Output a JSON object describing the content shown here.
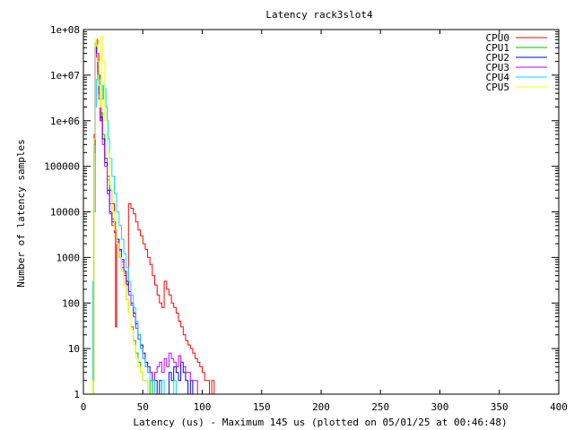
{
  "chart_data": {
    "type": "line",
    "title": "Latency rack3slot4",
    "xlabel": "Latency (us) - Maximum 145 us (plotted on 05/01/25 at 00:46:48)",
    "ylabel": "Number of latency samples",
    "xlim": [
      0,
      400
    ],
    "ylim": [
      1,
      100000000
    ],
    "yscale": "log",
    "xticks": [
      0,
      50,
      100,
      150,
      200,
      250,
      300,
      350,
      400
    ],
    "yticks": [
      {
        "v": 1,
        "label": "1"
      },
      {
        "v": 10,
        "label": "10"
      },
      {
        "v": 100,
        "label": "100"
      },
      {
        "v": 1000,
        "label": "1000"
      },
      {
        "v": 10000,
        "label": "10000"
      },
      {
        "v": 100000,
        "label": "100000"
      },
      {
        "v": 1000000,
        "label": "1e+06"
      },
      {
        "v": 10000000,
        "label": "1e+07"
      },
      {
        "v": 100000000,
        "label": "1e+08"
      }
    ],
    "legend_position": "top-right",
    "series": [
      {
        "name": "CPU0",
        "color": "#ff0000",
        "x": [
          8,
          9,
          10,
          11,
          12,
          13,
          14,
          15,
          16,
          18,
          20,
          22,
          24,
          26,
          27,
          28,
          30,
          32,
          34,
          36,
          38,
          40,
          42,
          44,
          46,
          48,
          50,
          52,
          54,
          56,
          58,
          60,
          62,
          64,
          66,
          68,
          70,
          72,
          74,
          76,
          78,
          80,
          82,
          84,
          86,
          88,
          90,
          92,
          94,
          96,
          98,
          100,
          102,
          104,
          106,
          108,
          110,
          112,
          114,
          116,
          118,
          120,
          122,
          124,
          126,
          128,
          130,
          132,
          134,
          136,
          138,
          140,
          145
        ],
        "y": [
          2,
          500000,
          50000000,
          60000000,
          30000000,
          10000000,
          3000000,
          1000000,
          400000,
          150000,
          60000,
          30000,
          15000,
          6000,
          30,
          2000,
          1000,
          600,
          400,
          250,
          15000,
          12000,
          9000,
          6000,
          4000,
          3000,
          2000,
          1500,
          1000,
          700,
          400,
          250,
          150,
          100,
          80,
          300,
          200,
          150,
          100,
          80,
          60,
          40,
          30,
          20,
          15,
          12,
          10,
          8,
          6,
          5,
          4,
          3,
          2,
          2,
          1,
          2,
          1,
          1,
          1,
          1,
          1,
          1,
          1,
          1,
          1,
          1,
          0,
          0,
          1,
          0,
          1,
          0,
          1
        ]
      },
      {
        "name": "CPU1",
        "color": "#00c000",
        "x": [
          8,
          9,
          10,
          11,
          12,
          13,
          14,
          16,
          18,
          20,
          22,
          24,
          26,
          28,
          30,
          32,
          34,
          36,
          38,
          40,
          42,
          44,
          46,
          48,
          50,
          52,
          54,
          56,
          58,
          60,
          62,
          64,
          66,
          68,
          70,
          72
        ],
        "y": [
          2,
          300000,
          50000000,
          40000000,
          15000000,
          5000000,
          1500000,
          500000,
          150000,
          50000,
          15000,
          7000,
          4000,
          2000,
          1000,
          500,
          250,
          120,
          60,
          30,
          15,
          8,
          5,
          3,
          2,
          2,
          1,
          2,
          1,
          1,
          1,
          1,
          1,
          0,
          1,
          1
        ]
      },
      {
        "name": "CPU2",
        "color": "#0000ff",
        "x": [
          8,
          9,
          10,
          11,
          12,
          13,
          14,
          16,
          18,
          20,
          22,
          24,
          26,
          28,
          30,
          32,
          34,
          36,
          38,
          40,
          42,
          44,
          46,
          48,
          50,
          52,
          54,
          56,
          58,
          60,
          62,
          64,
          66,
          68,
          70,
          72,
          74,
          76,
          78,
          80,
          82,
          84,
          86,
          88,
          90,
          92,
          94,
          96,
          98,
          100,
          102,
          104,
          106,
          108,
          110
        ],
        "y": [
          2,
          300000,
          40000000,
          30000000,
          12000000,
          4000000,
          1200000,
          400000,
          120000,
          30000,
          10000,
          6000,
          4000,
          2500,
          1500,
          900,
          500,
          300,
          180,
          100,
          60,
          35,
          20,
          12,
          8,
          5,
          4,
          3,
          2,
          2,
          1,
          2,
          1,
          1,
          1,
          3,
          2,
          4,
          3,
          2,
          5,
          3,
          2,
          1,
          2,
          1,
          1,
          1,
          1,
          1,
          1,
          1,
          1,
          1,
          1
        ]
      },
      {
        "name": "CPU3",
        "color": "#c000ff",
        "x": [
          8,
          9,
          10,
          11,
          12,
          13,
          14,
          16,
          18,
          20,
          22,
          24,
          26,
          28,
          30,
          32,
          34,
          36,
          38,
          40,
          42,
          44,
          46,
          48,
          50,
          52,
          54,
          56,
          58,
          60,
          62,
          64,
          66,
          68,
          70,
          72,
          74,
          76,
          78,
          80,
          82,
          84,
          86,
          88,
          90,
          92,
          94,
          96,
          98,
          100
        ],
        "y": [
          2,
          200000,
          30000000,
          25000000,
          10000000,
          3000000,
          1000000,
          300000,
          100000,
          25000,
          9000,
          5000,
          3500,
          2200,
          1400,
          800,
          450,
          260,
          150,
          90,
          50,
          28,
          16,
          10,
          6,
          4,
          3,
          3,
          2,
          3,
          4,
          5,
          3,
          6,
          4,
          8,
          6,
          5,
          4,
          7,
          5,
          4,
          3,
          3,
          2,
          2,
          2,
          1,
          1,
          1
        ]
      },
      {
        "name": "CPU4",
        "color": "#00e0e0",
        "x": [
          8,
          9,
          10,
          11,
          12,
          13,
          14,
          15,
          16,
          17,
          18,
          19,
          20,
          21,
          22,
          24,
          26,
          28,
          30,
          32,
          34,
          36,
          38,
          40,
          42,
          44,
          46,
          48,
          50,
          52,
          54,
          56,
          58,
          60,
          62,
          64,
          66,
          68,
          70,
          72,
          74,
          76,
          78,
          80,
          82,
          84
        ],
        "y": [
          300,
          10000,
          2000000,
          8000000,
          10000000,
          8000000,
          5000000,
          6000000,
          3000000,
          6000000,
          5000000,
          2000000,
          1000000,
          400000,
          150000,
          60000,
          25000,
          10000,
          5000,
          2500,
          1200,
          600,
          300,
          150,
          80,
          40,
          20,
          10,
          6,
          4,
          3,
          2,
          2,
          1,
          1,
          1,
          2,
          1,
          1,
          1,
          1,
          2,
          1,
          1,
          1,
          1
        ]
      },
      {
        "name": "CPU5",
        "color": "#ffff00",
        "x": [
          8,
          9,
          10,
          11,
          12,
          13,
          14,
          15,
          16,
          18,
          20,
          22,
          24,
          26,
          28,
          30,
          32,
          34,
          36,
          38,
          40,
          42,
          44,
          46,
          48,
          50,
          52,
          54,
          56,
          58,
          60,
          62,
          64,
          66,
          68,
          70
        ],
        "y": [
          2,
          400000,
          60000000,
          45000000,
          20000000,
          6000000,
          2000000,
          70000000,
          20000000,
          1000000,
          200000,
          40000,
          10000,
          4000,
          2000,
          1000,
          500,
          250,
          120,
          60,
          25,
          12,
          6,
          4,
          3,
          2,
          2,
          1,
          1,
          1,
          1,
          1,
          1,
          1,
          1,
          1
        ]
      }
    ]
  }
}
